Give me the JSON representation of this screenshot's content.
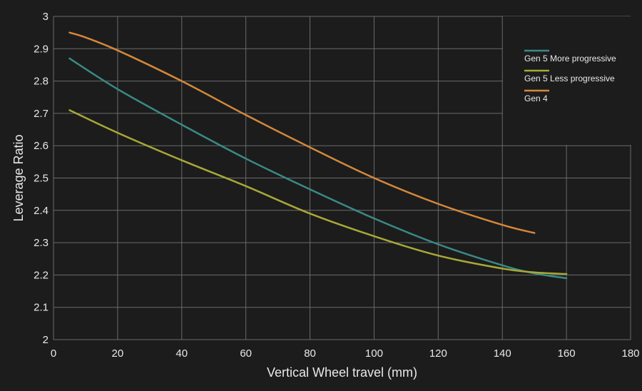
{
  "chart_data": {
    "type": "line",
    "xlabel": "Vertical Wheel travel (mm)",
    "ylabel": "Leverage Ratio",
    "xlim": [
      0,
      180
    ],
    "ylim": [
      2,
      3
    ],
    "xticks": [
      0,
      20,
      40,
      60,
      80,
      100,
      120,
      140,
      160,
      180
    ],
    "yticks": [
      2,
      2.1,
      2.2,
      2.3,
      2.4,
      2.5,
      2.6,
      2.7,
      2.8,
      2.9,
      3
    ],
    "ytick_labels": [
      "2",
      "2.1",
      "2.2",
      "2.3",
      "2.4",
      "2.5",
      "2.6",
      "2.7",
      "2.8",
      "2.9",
      "3"
    ],
    "grid": true,
    "legend_position": "top-right",
    "series": [
      {
        "name": "Gen 5 More progressive",
        "color": "#3a8a86",
        "x": [
          5,
          20,
          40,
          60,
          80,
          100,
          120,
          140,
          150,
          160
        ],
        "y": [
          2.87,
          2.775,
          2.665,
          2.56,
          2.465,
          2.375,
          2.295,
          2.23,
          2.205,
          2.19
        ]
      },
      {
        "name": "Gen 5 Less progressive",
        "color": "#a8a838",
        "x": [
          5,
          20,
          40,
          60,
          80,
          100,
          120,
          140,
          150,
          160
        ],
        "y": [
          2.71,
          2.64,
          2.555,
          2.475,
          2.39,
          2.32,
          2.26,
          2.22,
          2.208,
          2.203
        ]
      },
      {
        "name": "Gen 4",
        "color": "#d4883a",
        "x": [
          5,
          10,
          20,
          40,
          60,
          80,
          100,
          120,
          140,
          150
        ],
        "y": [
          2.95,
          2.935,
          2.895,
          2.8,
          2.695,
          2.595,
          2.5,
          2.42,
          2.355,
          2.33
        ]
      }
    ]
  }
}
